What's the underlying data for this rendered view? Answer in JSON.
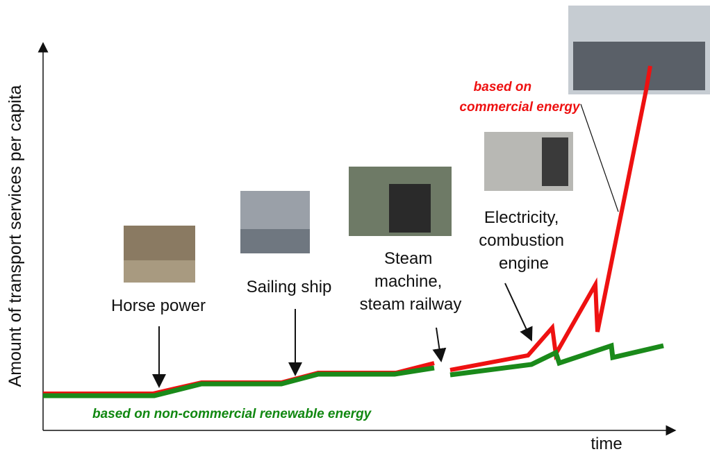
{
  "y_axis_label": "Amount of  transport  services  per capita",
  "x_axis_label": "time",
  "stages": [
    {
      "label": [
        "Horse power"
      ]
    },
    {
      "label": [
        "Sailing ship"
      ]
    },
    {
      "label": [
        "Steam",
        "machine,",
        "steam railway"
      ]
    },
    {
      "label": [
        "Electricity,",
        "combustion",
        "engine"
      ]
    }
  ],
  "commercial_label": [
    "based on",
    "commercial  energy"
  ],
  "renewable_label": "based  on non-commercial  renewable energy"
}
